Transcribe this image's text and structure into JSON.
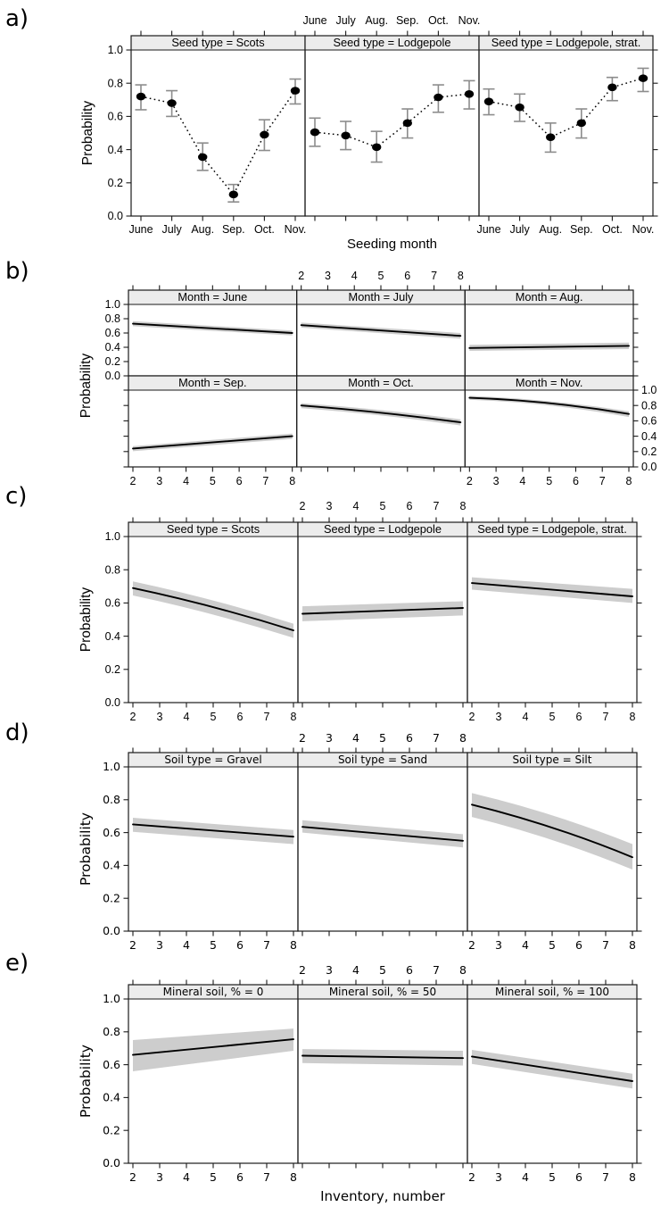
{
  "colors": {
    "line": "#000000",
    "band": "#cdcdcd",
    "strip_bg": "#ececec",
    "panel_border": "#1a1a1a",
    "error_bar": "#8c8c8c",
    "point": "#000000",
    "text": "#000000"
  },
  "chart_data": [
    {
      "id": "a",
      "tag": "a)",
      "type": "points-errorbars",
      "xlabel": "Seeding month",
      "ylabel": "Probability",
      "ylim": [
        0,
        1
      ],
      "yticks": [
        "0.0",
        "0.2",
        "0.4",
        "0.6",
        "0.8",
        "1.0"
      ],
      "x_categories": [
        "June",
        "July",
        "Aug.",
        "Sep.",
        "Oct.",
        "Nov."
      ],
      "top_axis_labels": [
        "June",
        "July",
        "Aug.",
        "Sep.",
        "Oct.",
        "Nov."
      ],
      "legend": "none",
      "rows": [
        [
          {
            "strip": "Seed type = Scots",
            "y": [
              0.72,
              0.68,
              0.355,
              0.13,
              0.49,
              0.755
            ],
            "lo": [
              0.64,
              0.6,
              0.275,
              0.085,
              0.395,
              0.675
            ],
            "hi": [
              0.79,
              0.755,
              0.44,
              0.19,
              0.58,
              0.825
            ]
          },
          {
            "strip": "Seed type = Lodgepole",
            "y": [
              0.505,
              0.485,
              0.415,
              0.56,
              0.715,
              0.735
            ],
            "lo": [
              0.42,
              0.4,
              0.325,
              0.47,
              0.625,
              0.645
            ],
            "hi": [
              0.59,
              0.57,
              0.51,
              0.645,
              0.79,
              0.815
            ]
          },
          {
            "strip": "Seed type = Lodgepole, strat.",
            "y": [
              0.69,
              0.655,
              0.475,
              0.56,
              0.775,
              0.83
            ],
            "lo": [
              0.61,
              0.57,
              0.385,
              0.47,
              0.695,
              0.75
            ],
            "hi": [
              0.765,
              0.735,
              0.56,
              0.645,
              0.835,
              0.89
            ]
          }
        ]
      ]
    },
    {
      "id": "b",
      "tag": "b)",
      "type": "line-band",
      "xlabel": "",
      "ylabel": "Probability",
      "ylim": [
        0,
        1
      ],
      "xlim": [
        2,
        8
      ],
      "yticks": [
        "0.0",
        "0.2",
        "0.4",
        "0.6",
        "0.8",
        "1.0"
      ],
      "xticks": [
        "2",
        "3",
        "4",
        "5",
        "6",
        "7",
        "8"
      ],
      "top_axis_labels": [
        "2",
        "3",
        "4",
        "5",
        "6",
        "7",
        "8"
      ],
      "legend": "none",
      "rows": [
        [
          {
            "strip": "Month = June",
            "x": [
              2,
              8
            ],
            "y": [
              0.73,
              0.6
            ],
            "lo": [
              0.695,
              0.565
            ],
            "hi": [
              0.765,
              0.635
            ]
          },
          {
            "strip": "Month = July",
            "x": [
              2,
              8
            ],
            "y": [
              0.71,
              0.56
            ],
            "lo": [
              0.675,
              0.52
            ],
            "hi": [
              0.745,
              0.6
            ]
          },
          {
            "strip": "Month = Aug.",
            "x": [
              2,
              8
            ],
            "y": [
              0.39,
              0.42
            ],
            "lo": [
              0.35,
              0.375
            ],
            "hi": [
              0.435,
              0.465
            ]
          }
        ],
        [
          {
            "strip": "Month = Sep.",
            "x": [
              2,
              8
            ],
            "y": [
              0.24,
              0.4
            ],
            "lo": [
              0.205,
              0.365
            ],
            "hi": [
              0.27,
              0.435
            ]
          },
          {
            "strip": "Month = Oct.",
            "x": [
              2,
              5,
              8
            ],
            "y": [
              0.8,
              0.705,
              0.58
            ],
            "lo": [
              0.765,
              0.67,
              0.54
            ],
            "hi": [
              0.83,
              0.74,
              0.62
            ]
          },
          {
            "strip": "Month = Nov.",
            "x": [
              2,
              5,
              8
            ],
            "y": [
              0.9,
              0.83,
              0.69
            ],
            "lo": [
              0.875,
              0.8,
              0.65
            ],
            "hi": [
              0.925,
              0.855,
              0.725
            ]
          }
        ]
      ]
    },
    {
      "id": "c",
      "tag": "c)",
      "type": "line-band",
      "xlabel": "",
      "ylabel": "Probability",
      "ylim": [
        0,
        1
      ],
      "xlim": [
        2,
        8
      ],
      "yticks": [
        "0.0",
        "0.2",
        "0.4",
        "0.6",
        "0.8",
        "1.0"
      ],
      "xticks": [
        "2",
        "3",
        "4",
        "5",
        "6",
        "7",
        "8"
      ],
      "top_axis_labels": [
        "2",
        "3",
        "4",
        "5",
        "6",
        "7",
        "8"
      ],
      "legend": "none",
      "rows": [
        [
          {
            "strip": "Seed type = Scots",
            "x": [
              2,
              5,
              8
            ],
            "y": [
              0.69,
              0.575,
              0.435
            ],
            "lo": [
              0.645,
              0.53,
              0.39
            ],
            "hi": [
              0.73,
              0.615,
              0.475
            ]
          },
          {
            "strip": "Seed type = Lodgepole",
            "x": [
              2,
              8
            ],
            "y": [
              0.535,
              0.57
            ],
            "lo": [
              0.49,
              0.525
            ],
            "hi": [
              0.58,
              0.61
            ]
          },
          {
            "strip": "Seed type = Lodgepole, strat.",
            "x": [
              2,
              8
            ],
            "y": [
              0.72,
              0.64
            ],
            "lo": [
              0.68,
              0.6
            ],
            "hi": [
              0.755,
              0.685
            ]
          }
        ]
      ]
    },
    {
      "id": "d",
      "tag": "d)",
      "type": "line-band",
      "xlabel": "",
      "ylabel": "Probability",
      "ylim": [
        0,
        1
      ],
      "xlim": [
        2,
        8
      ],
      "yticks": [
        "0.0",
        "0.2",
        "0.4",
        "0.6",
        "0.8",
        "1.0"
      ],
      "xticks": [
        "2",
        "3",
        "4",
        "5",
        "6",
        "7",
        "8"
      ],
      "top_axis_labels": [
        "2",
        "3",
        "4",
        "5",
        "6",
        "7",
        "8"
      ],
      "legend": "none",
      "rows": [
        [
          {
            "strip": "Soil type = Gravel",
            "x": [
              2,
              8
            ],
            "y": [
              0.65,
              0.575
            ],
            "lo": [
              0.605,
              0.53
            ],
            "hi": [
              0.69,
              0.615
            ]
          },
          {
            "strip": "Soil type = Sand",
            "x": [
              2,
              8
            ],
            "y": [
              0.635,
              0.55
            ],
            "lo": [
              0.6,
              0.51
            ],
            "hi": [
              0.675,
              0.59
            ]
          },
          {
            "strip": "Soil type = Silt",
            "x": [
              2,
              5,
              8
            ],
            "y": [
              0.77,
              0.63,
              0.45
            ],
            "lo": [
              0.695,
              0.555,
              0.375
            ],
            "hi": [
              0.84,
              0.705,
              0.53
            ]
          }
        ]
      ]
    },
    {
      "id": "e",
      "tag": "e)",
      "type": "line-band",
      "xlabel": "Inventory, number",
      "ylabel": "Probability",
      "ylim": [
        0,
        1
      ],
      "xlim": [
        2,
        8
      ],
      "yticks": [
        "0.0",
        "0.2",
        "0.4",
        "0.6",
        "0.8",
        "1.0"
      ],
      "xticks": [
        "2",
        "3",
        "4",
        "5",
        "6",
        "7",
        "8"
      ],
      "top_axis_labels": [
        "2",
        "3",
        "4",
        "5",
        "6",
        "7",
        "8"
      ],
      "legend": "none",
      "rows": [
        [
          {
            "strip": "Mineral soil, % = 0",
            "x": [
              2,
              8
            ],
            "y": [
              0.66,
              0.755
            ],
            "lo": [
              0.56,
              0.685
            ],
            "hi": [
              0.75,
              0.82
            ]
          },
          {
            "strip": "Mineral soil, % = 50",
            "x": [
              2,
              8
            ],
            "y": [
              0.655,
              0.64
            ],
            "lo": [
              0.61,
              0.595
            ],
            "hi": [
              0.695,
              0.685
            ]
          },
          {
            "strip": "Mineral soil, % = 100",
            "x": [
              2,
              8
            ],
            "y": [
              0.65,
              0.5
            ],
            "lo": [
              0.605,
              0.455
            ],
            "hi": [
              0.69,
              0.545
            ]
          }
        ]
      ]
    }
  ]
}
